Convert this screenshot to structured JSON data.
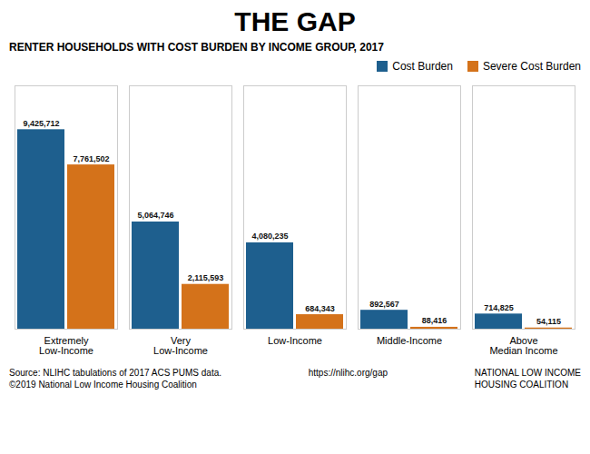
{
  "chart_data": {
    "type": "bar",
    "title": "THE GAP",
    "subtitle": "RENTER HOUSEHOLDS WITH COST BURDEN BY INCOME GROUP, 2017",
    "categories": [
      "Extremely\nLow-Income",
      "Very\nLow-Income",
      "Low-Income",
      "Middle-Income",
      "Above\nMedian Income"
    ],
    "series": [
      {
        "name": "Cost Burden",
        "color": "#1e5f8e",
        "values": [
          9425712,
          5064746,
          4080235,
          892567,
          714825
        ],
        "value_labels": [
          "9,425,712",
          "5,064,746",
          "4,080,235",
          "892,567",
          "714,825"
        ]
      },
      {
        "name": "Severe Cost Burden",
        "color": "#d4721a",
        "values": [
          7761502,
          2115593,
          684343,
          88416,
          54115
        ],
        "value_labels": [
          "7,761,502",
          "2,115,593",
          "684,343",
          "88,416",
          "54,115"
        ]
      }
    ],
    "ylim": [
      0,
      11499368.64
    ],
    "grid": false,
    "legend": "upper right",
    "data_labels": true,
    "tick_labels": "x",
    "annotations": [
      "Source: NLIHC tabulations of 2017 ACS PUMS data.\n©2019 National Low Income Housing Coalition",
      "https://nlihc.org/gap",
      "NATIONAL LOW INCOME\nHOUSING COALITION"
    ]
  }
}
